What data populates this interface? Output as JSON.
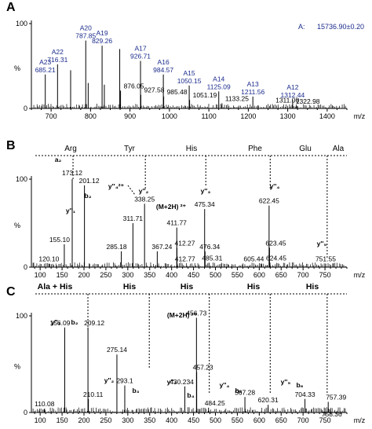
{
  "chart_data": [
    {
      "id": "A",
      "type": "bar",
      "panel_letter": "A",
      "xlim": [
        650,
        1450
      ],
      "ylim": [
        0,
        100
      ],
      "x_ticks": [
        700,
        800,
        900,
        1000,
        1100,
        1200,
        1300,
        1400
      ],
      "y_ticks": [
        0,
        100
      ],
      "y_unit": "%",
      "x_unit": "m/z",
      "annotation": {
        "label": "A:",
        "value": "15736.90±0.20"
      },
      "peaks": [
        {
          "x": 685.21,
          "y": 40,
          "label": "A23\n685.21",
          "color": "blue"
        },
        {
          "x": 716.31,
          "y": 52,
          "label": "A22\n716.31",
          "color": "blue"
        },
        {
          "x": 749.5,
          "y": 45
        },
        {
          "x": 787.85,
          "y": 80,
          "label": "A20\n787.85",
          "color": "blue"
        },
        {
          "x": 794.0,
          "y": 30
        },
        {
          "x": 829.26,
          "y": 74,
          "label": "A19\n829.26",
          "color": "blue"
        },
        {
          "x": 835.0,
          "y": 28
        },
        {
          "x": 874.0,
          "y": 70
        },
        {
          "x": 876.05,
          "y": 21,
          "label": "876.05"
        },
        {
          "x": 926.71,
          "y": 56,
          "label": "A17\n926.71",
          "color": "blue"
        },
        {
          "x": 927.58,
          "y": 16,
          "label": "927.58"
        },
        {
          "x": 984.57,
          "y": 40,
          "label": "A16\n984.57",
          "color": "blue"
        },
        {
          "x": 985.48,
          "y": 14,
          "label": "985.48"
        },
        {
          "x": 1050.15,
          "y": 27,
          "label": "A15\n1050.15",
          "color": "blue"
        },
        {
          "x": 1051.19,
          "y": 10,
          "label": "1051.19"
        },
        {
          "x": 1125.09,
          "y": 20,
          "label": "A14\n1125.09",
          "color": "blue"
        },
        {
          "x": 1133.25,
          "y": 6,
          "label": "1133.25"
        },
        {
          "x": 1211.56,
          "y": 14,
          "label": "A13\n1211.56",
          "color": "blue"
        },
        {
          "x": 1311.0,
          "y": 4,
          "label": "1311.00"
        },
        {
          "x": 1312.44,
          "y": 10,
          "label": "A12\n1312.44",
          "color": "blue"
        },
        {
          "x": 1322.98,
          "y": 3,
          "label": "1322.98"
        }
      ]
    },
    {
      "id": "B",
      "type": "bar",
      "panel_letter": "B",
      "xlim": [
        80,
        800
      ],
      "ylim": [
        0,
        100
      ],
      "x_ticks": [
        100,
        150,
        200,
        250,
        300,
        350,
        400,
        450,
        500,
        550,
        600,
        650,
        700,
        750
      ],
      "y_ticks": [
        0,
        100
      ],
      "y_unit": "%",
      "x_unit": "m/z",
      "sequence": [
        "Arg",
        "Tyr",
        "His",
        "Phe",
        "Glu",
        "Ala"
      ],
      "peaks": [
        {
          "x": 120.1,
          "y": 4,
          "label": "120.10"
        },
        {
          "x": 155.1,
          "y": 26,
          "label": "155.10"
        },
        {
          "x": 173.12,
          "y": 100,
          "label": "173.12"
        },
        {
          "x": 201.12,
          "y": 93,
          "label": "201.12"
        },
        {
          "x": 285.18,
          "y": 18,
          "label": "285.18"
        },
        {
          "x": 311.71,
          "y": 50,
          "label": "311.71"
        },
        {
          "x": 338.25,
          "y": 72,
          "label": "338.25"
        },
        {
          "x": 367.24,
          "y": 18,
          "label": "367.24"
        },
        {
          "x": 411.77,
          "y": 45,
          "label": "411.77"
        },
        {
          "x": 412.27,
          "y": 22,
          "label": "412.27"
        },
        {
          "x": 412.77,
          "y": 4,
          "label": "412.77"
        },
        {
          "x": 475.34,
          "y": 66,
          "label": "475.34"
        },
        {
          "x": 476.34,
          "y": 18,
          "label": "476.34"
        },
        {
          "x": 485.31,
          "y": 5,
          "label": "485.31"
        },
        {
          "x": 605.44,
          "y": 4,
          "label": "605.44"
        },
        {
          "x": 622.45,
          "y": 70,
          "label": "622.45"
        },
        {
          "x": 623.45,
          "y": 22,
          "label": "623.45"
        },
        {
          "x": 624.45,
          "y": 5,
          "label": "624.45"
        },
        {
          "x": 751.55,
          "y": 4,
          "label": "751.55"
        }
      ],
      "ion_labels": [
        "a2",
        "y''1",
        "b2",
        "y''4 2+",
        "y''2",
        "(M+2H) 2+",
        "y''3",
        "y''4",
        "y''5"
      ]
    },
    {
      "id": "C",
      "type": "bar",
      "panel_letter": "C",
      "xlim": [
        80,
        800
      ],
      "ylim": [
        0,
        100
      ],
      "x_ticks": [
        100,
        150,
        200,
        250,
        300,
        350,
        400,
        450,
        500,
        550,
        600,
        650,
        700,
        750
      ],
      "y_ticks": [
        0,
        100
      ],
      "y_unit": "%",
      "x_unit": "m/z",
      "sequence": [
        "Ala + His",
        "His",
        "His",
        "His",
        "His"
      ],
      "peaks": [
        {
          "x": 110.08,
          "y": 4,
          "label": "110.08"
        },
        {
          "x": 156.09,
          "y": 88,
          "label": "156.09"
        },
        {
          "x": 209.12,
          "y": 88,
          "label": "209.12"
        },
        {
          "x": 210.11,
          "y": 14,
          "label": "210.11"
        },
        {
          "x": 275.14,
          "y": 60,
          "label": "275.14"
        },
        {
          "x": 293.1,
          "y": 28,
          "label": "293.1"
        },
        {
          "x": 430.234,
          "y": 27,
          "label": "430.234"
        },
        {
          "x": 456.73,
          "y": 98,
          "label": "456.73"
        },
        {
          "x": 457.23,
          "y": 42,
          "label": "457.23"
        },
        {
          "x": 484.25,
          "y": 5,
          "label": "484.25"
        },
        {
          "x": 567.28,
          "y": 16,
          "label": "567.28"
        },
        {
          "x": 620.31,
          "y": 8,
          "label": "620.31"
        },
        {
          "x": 704.33,
          "y": 14,
          "label": "704.33"
        },
        {
          "x": 757.39,
          "y": 11,
          "label": "757.39"
        },
        {
          "x": 758.36,
          "y": 4,
          "label": "758.36"
        }
      ],
      "ion_labels": [
        "y''1",
        "b2",
        "(M+2H) 2+",
        "y''2",
        "b3",
        "y''3",
        "b4",
        "y''4",
        "b5",
        "y''5",
        "b6"
      ]
    }
  ]
}
